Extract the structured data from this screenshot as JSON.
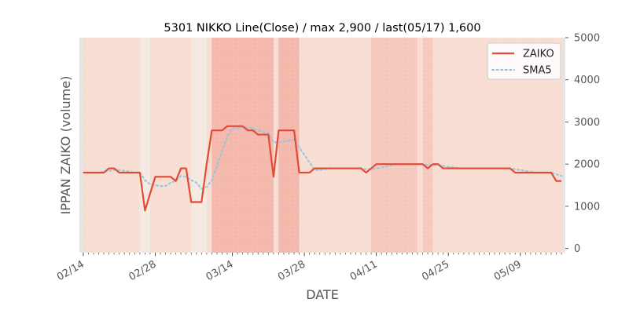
{
  "chart_data": {
    "type": "line",
    "title": "5301 NIKKO Line(Close) / max 2,900 / last(05/17) 1,600",
    "xlabel": "DATE",
    "ylabel": "IPPAN ZAIKO (volume)",
    "ylim": [
      -100,
      5000
    ],
    "y_ticks": [
      0,
      1000,
      2000,
      3000,
      4000,
      5000
    ],
    "y_axis_side": "right",
    "grid": false,
    "legend_position": "top-right",
    "x_ticks": [
      {
        "label": "02/14",
        "date": "2024-02-14"
      },
      {
        "label": "02/28",
        "date": "2024-02-28"
      },
      {
        "label": "03/14",
        "date": "2024-03-14"
      },
      {
        "label": "03/28",
        "date": "2024-03-28"
      },
      {
        "label": "04/11",
        "date": "2024-04-11"
      },
      {
        "label": "04/25",
        "date": "2024-04-25"
      },
      {
        "label": "05/09",
        "date": "2024-05-09"
      }
    ],
    "colors": {
      "ZAIKO": "#e24a33",
      "SMA5": "#92c5de",
      "band_light": "#f8ddd3",
      "band_pale": "#f4eae2",
      "band_strong": "#f4b8ad",
      "axes_face": "#e5e5e5"
    },
    "series": [
      {
        "name": "ZAIKO",
        "style": "solid",
        "points": [
          [
            "2024-02-14",
            1800
          ],
          [
            "2024-02-15",
            1800
          ],
          [
            "2024-02-16",
            1800
          ],
          [
            "2024-02-17",
            1800
          ],
          [
            "2024-02-18",
            1800
          ],
          [
            "2024-02-19",
            1900
          ],
          [
            "2024-02-20",
            1900
          ],
          [
            "2024-02-21",
            1800
          ],
          [
            "2024-02-22",
            1800
          ],
          [
            "2024-02-23",
            1800
          ],
          [
            "2024-02-24",
            1800
          ],
          [
            "2024-02-25",
            1800
          ],
          [
            "2024-02-26",
            900
          ],
          [
            "2024-02-27",
            1300
          ],
          [
            "2024-02-28",
            1700
          ],
          [
            "2024-02-29",
            1700
          ],
          [
            "2024-03-01",
            1700
          ],
          [
            "2024-03-02",
            1700
          ],
          [
            "2024-03-03",
            1600
          ],
          [
            "2024-03-04",
            1900
          ],
          [
            "2024-03-05",
            1900
          ],
          [
            "2024-03-06",
            1100
          ],
          [
            "2024-03-07",
            1100
          ],
          [
            "2024-03-08",
            1100
          ],
          [
            "2024-03-09",
            2000
          ],
          [
            "2024-03-10",
            2800
          ],
          [
            "2024-03-11",
            2800
          ],
          [
            "2024-03-12",
            2800
          ],
          [
            "2024-03-13",
            2900
          ],
          [
            "2024-03-14",
            2900
          ],
          [
            "2024-03-15",
            2900
          ],
          [
            "2024-03-16",
            2900
          ],
          [
            "2024-03-17",
            2800
          ],
          [
            "2024-03-18",
            2800
          ],
          [
            "2024-03-19",
            2700
          ],
          [
            "2024-03-20",
            2700
          ],
          [
            "2024-03-21",
            2700
          ],
          [
            "2024-03-22",
            1700
          ],
          [
            "2024-03-23",
            2800
          ],
          [
            "2024-03-24",
            2800
          ],
          [
            "2024-03-25",
            2800
          ],
          [
            "2024-03-26",
            2800
          ],
          [
            "2024-03-27",
            1800
          ],
          [
            "2024-03-28",
            1800
          ],
          [
            "2024-03-29",
            1800
          ],
          [
            "2024-03-30",
            1900
          ],
          [
            "2024-03-31",
            1900
          ],
          [
            "2024-04-01",
            1900
          ],
          [
            "2024-04-02",
            1900
          ],
          [
            "2024-04-03",
            1900
          ],
          [
            "2024-04-04",
            1900
          ],
          [
            "2024-04-05",
            1900
          ],
          [
            "2024-04-06",
            1900
          ],
          [
            "2024-04-07",
            1900
          ],
          [
            "2024-04-08",
            1900
          ],
          [
            "2024-04-09",
            1800
          ],
          [
            "2024-04-10",
            1900
          ],
          [
            "2024-04-11",
            2000
          ],
          [
            "2024-04-12",
            2000
          ],
          [
            "2024-04-13",
            2000
          ],
          [
            "2024-04-14",
            2000
          ],
          [
            "2024-04-15",
            2000
          ],
          [
            "2024-04-16",
            2000
          ],
          [
            "2024-04-17",
            2000
          ],
          [
            "2024-04-18",
            2000
          ],
          [
            "2024-04-19",
            2000
          ],
          [
            "2024-04-20",
            2000
          ],
          [
            "2024-04-21",
            1900
          ],
          [
            "2024-04-22",
            2000
          ],
          [
            "2024-04-23",
            2000
          ],
          [
            "2024-04-24",
            1900
          ],
          [
            "2024-04-25",
            1900
          ],
          [
            "2024-04-26",
            1900
          ],
          [
            "2024-04-27",
            1900
          ],
          [
            "2024-04-28",
            1900
          ],
          [
            "2024-04-29",
            1900
          ],
          [
            "2024-04-30",
            1900
          ],
          [
            "2024-05-01",
            1900
          ],
          [
            "2024-05-02",
            1900
          ],
          [
            "2024-05-03",
            1900
          ],
          [
            "2024-05-04",
            1900
          ],
          [
            "2024-05-05",
            1900
          ],
          [
            "2024-05-06",
            1900
          ],
          [
            "2024-05-07",
            1900
          ],
          [
            "2024-05-08",
            1800
          ],
          [
            "2024-05-09",
            1800
          ],
          [
            "2024-05-10",
            1800
          ],
          [
            "2024-05-11",
            1800
          ],
          [
            "2024-05-12",
            1800
          ],
          [
            "2024-05-13",
            1800
          ],
          [
            "2024-05-14",
            1800
          ],
          [
            "2024-05-15",
            1800
          ],
          [
            "2024-05-16",
            1600
          ],
          [
            "2024-05-17",
            1600
          ]
        ]
      },
      {
        "name": "SMA5",
        "style": "dotted",
        "points": [
          [
            "2024-02-14",
            1800
          ],
          [
            "2024-02-15",
            1800
          ],
          [
            "2024-02-16",
            1800
          ],
          [
            "2024-02-17",
            1800
          ],
          [
            "2024-02-18",
            1820
          ],
          [
            "2024-02-19",
            1840
          ],
          [
            "2024-02-20",
            1860
          ],
          [
            "2024-02-21",
            1860
          ],
          [
            "2024-02-22",
            1840
          ],
          [
            "2024-02-23",
            1820
          ],
          [
            "2024-02-24",
            1800
          ],
          [
            "2024-02-25",
            1800
          ],
          [
            "2024-02-26",
            1620
          ],
          [
            "2024-02-27",
            1520
          ],
          [
            "2024-02-28",
            1500
          ],
          [
            "2024-02-29",
            1480
          ],
          [
            "2024-03-01",
            1480
          ],
          [
            "2024-03-02",
            1560
          ],
          [
            "2024-03-03",
            1600
          ],
          [
            "2024-03-04",
            1720
          ],
          [
            "2024-03-05",
            1700
          ],
          [
            "2024-03-06",
            1620
          ],
          [
            "2024-03-07",
            1560
          ],
          [
            "2024-03-08",
            1420
          ],
          [
            "2024-03-09",
            1460
          ],
          [
            "2024-03-10",
            1620
          ],
          [
            "2024-03-11",
            1960
          ],
          [
            "2024-03-12",
            2300
          ],
          [
            "2024-03-13",
            2660
          ],
          [
            "2024-03-14",
            2840
          ],
          [
            "2024-03-15",
            2860
          ],
          [
            "2024-03-16",
            2880
          ],
          [
            "2024-03-17",
            2860
          ],
          [
            "2024-03-18",
            2840
          ],
          [
            "2024-03-19",
            2800
          ],
          [
            "2024-03-20",
            2760
          ],
          [
            "2024-03-21",
            2740
          ],
          [
            "2024-03-22",
            2520
          ],
          [
            "2024-03-23",
            2520
          ],
          [
            "2024-03-24",
            2540
          ],
          [
            "2024-03-25",
            2560
          ],
          [
            "2024-03-26",
            2580
          ],
          [
            "2024-03-27",
            2400
          ],
          [
            "2024-03-28",
            2220
          ],
          [
            "2024-03-29",
            2040
          ],
          [
            "2024-03-30",
            1860
          ],
          [
            "2024-03-31",
            1860
          ],
          [
            "2024-04-01",
            1880
          ],
          [
            "2024-04-02",
            1900
          ],
          [
            "2024-04-03",
            1900
          ],
          [
            "2024-04-04",
            1900
          ],
          [
            "2024-04-05",
            1900
          ],
          [
            "2024-04-06",
            1900
          ],
          [
            "2024-04-07",
            1900
          ],
          [
            "2024-04-08",
            1900
          ],
          [
            "2024-04-09",
            1880
          ],
          [
            "2024-04-10",
            1880
          ],
          [
            "2024-04-11",
            1900
          ],
          [
            "2024-04-12",
            1920
          ],
          [
            "2024-04-13",
            1940
          ],
          [
            "2024-04-14",
            1980
          ],
          [
            "2024-04-15",
            2000
          ],
          [
            "2024-04-16",
            2000
          ],
          [
            "2024-04-17",
            2000
          ],
          [
            "2024-04-18",
            2000
          ],
          [
            "2024-04-19",
            2000
          ],
          [
            "2024-04-20",
            2000
          ],
          [
            "2024-04-21",
            1980
          ],
          [
            "2024-04-22",
            1980
          ],
          [
            "2024-04-23",
            1980
          ],
          [
            "2024-04-24",
            1960
          ],
          [
            "2024-04-25",
            1940
          ],
          [
            "2024-04-26",
            1920
          ],
          [
            "2024-04-27",
            1900
          ],
          [
            "2024-04-28",
            1900
          ],
          [
            "2024-04-29",
            1900
          ],
          [
            "2024-04-30",
            1900
          ],
          [
            "2024-05-01",
            1900
          ],
          [
            "2024-05-02",
            1900
          ],
          [
            "2024-05-03",
            1900
          ],
          [
            "2024-05-04",
            1900
          ],
          [
            "2024-05-05",
            1900
          ],
          [
            "2024-05-06",
            1900
          ],
          [
            "2024-05-07",
            1900
          ],
          [
            "2024-05-08",
            1880
          ],
          [
            "2024-05-09",
            1860
          ],
          [
            "2024-05-10",
            1840
          ],
          [
            "2024-05-11",
            1820
          ],
          [
            "2024-05-12",
            1800
          ],
          [
            "2024-05-13",
            1800
          ],
          [
            "2024-05-14",
            1800
          ],
          [
            "2024-05-15",
            1800
          ],
          [
            "2024-05-16",
            1760
          ],
          [
            "2024-05-17",
            1720
          ]
        ]
      }
    ],
    "background_bands": [
      {
        "start": "2024-02-14",
        "end": "2024-02-25",
        "level": "light"
      },
      {
        "start": "2024-02-25",
        "end": "2024-02-27",
        "level": "pale"
      },
      {
        "start": "2024-02-27",
        "end": "2024-03-06",
        "level": "light"
      },
      {
        "start": "2024-03-06",
        "end": "2024-03-09",
        "level": "pale"
      },
      {
        "start": "2024-03-09",
        "end": "2024-03-10",
        "level": "light"
      },
      {
        "start": "2024-03-10",
        "end": "2024-03-22",
        "level": "strong"
      },
      {
        "start": "2024-03-22",
        "end": "2024-03-23",
        "level": "light"
      },
      {
        "start": "2024-03-23",
        "end": "2024-03-27",
        "level": "strong"
      },
      {
        "start": "2024-03-27",
        "end": "2024-04-10",
        "level": "light"
      },
      {
        "start": "2024-04-10",
        "end": "2024-04-19",
        "level": "medium"
      },
      {
        "start": "2024-04-19",
        "end": "2024-04-20",
        "level": "light"
      },
      {
        "start": "2024-04-20",
        "end": "2024-04-22",
        "level": "medium"
      },
      {
        "start": "2024-04-22",
        "end": "2024-05-17",
        "level": "light"
      }
    ]
  }
}
